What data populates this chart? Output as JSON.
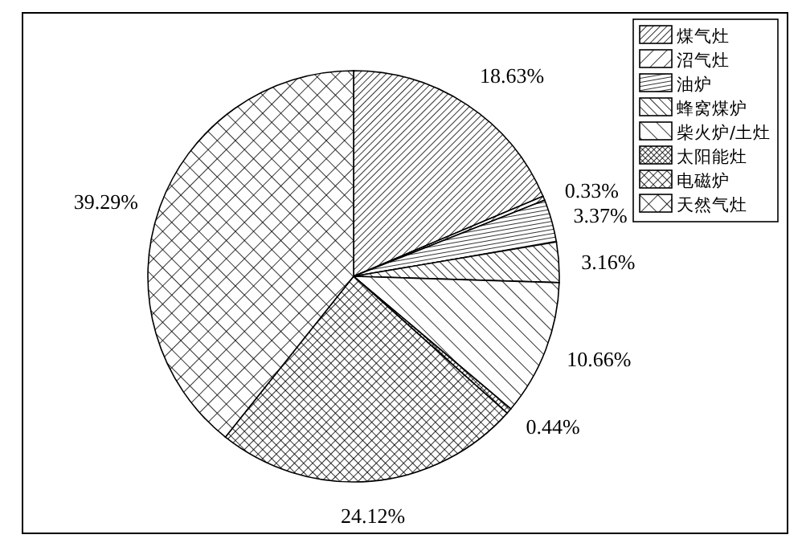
{
  "chart_data": {
    "type": "pie",
    "categories": [
      "煤气灶",
      "沼气灶",
      "油炉",
      "蜂窝煤炉",
      "柴火炉/土灶",
      "太阳能灶",
      "电磁炉",
      "天然气灶"
    ],
    "values": [
      18.63,
      0.33,
      3.37,
      3.16,
      10.66,
      0.44,
      24.12,
      39.29
    ],
    "colors": [
      "#000000",
      "#000000",
      "#000000",
      "#000000",
      "#000000",
      "#000000",
      "#000000",
      "#000000"
    ],
    "value_labels": [
      "18.63%",
      "0.33%",
      "3.37%",
      "3.16%",
      "10.66%",
      "0.44%",
      "24.12%",
      "39.29%"
    ],
    "legend": "top right"
  }
}
